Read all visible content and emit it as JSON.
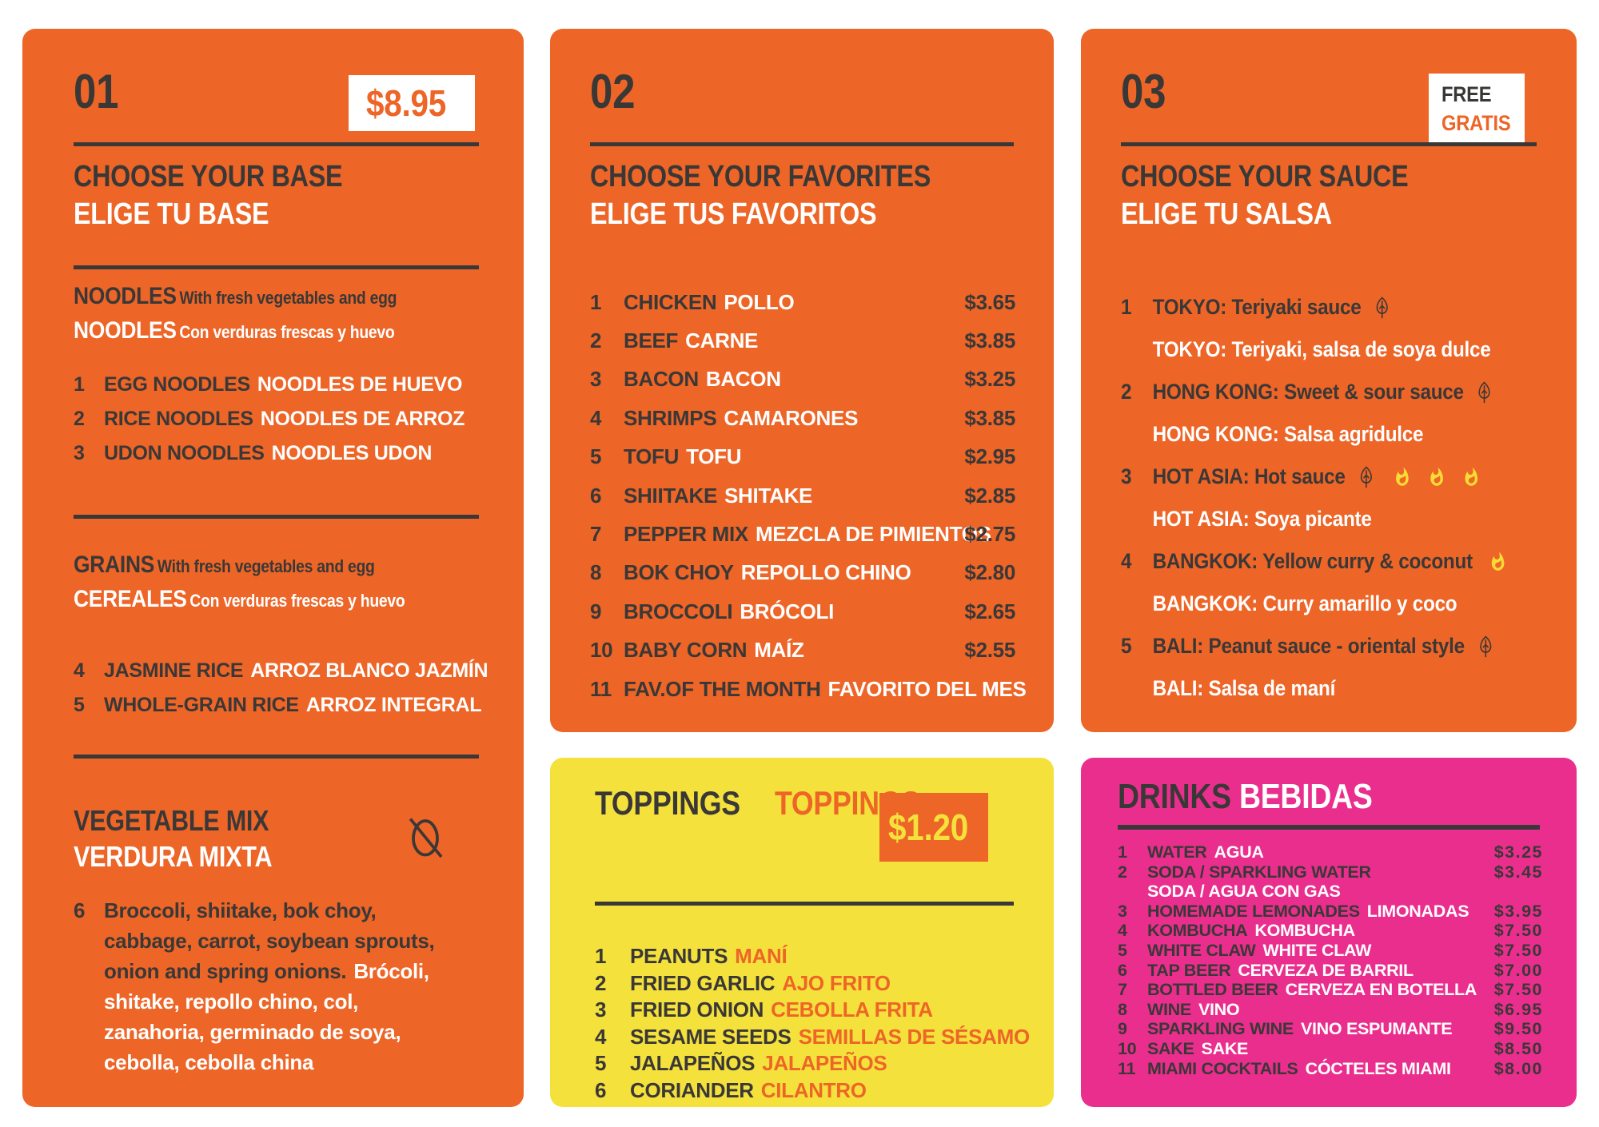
{
  "colors": {
    "orange": "#ED6527",
    "yellow": "#F5E13C",
    "pink": "#EA2E8E",
    "dark": "#3A3837",
    "white": "#FFFFFF"
  },
  "base": {
    "number": "01",
    "price_badge": "$8.95",
    "title_en": "CHOOSE YOUR BASE",
    "title_es": "ELIGE TU BASE",
    "noodles": {
      "heading_en": "NOODLES",
      "desc_en": "With fresh vegetables and egg",
      "heading_es": "NOODLES",
      "desc_es": "Con verduras frescas y huevo",
      "items": [
        {
          "num": "1",
          "en": "EGG NOODLES",
          "es": "NOODLES DE HUEVO"
        },
        {
          "num": "2",
          "en": "RICE NOODLES",
          "es": "NOODLES DE ARROZ"
        },
        {
          "num": "3",
          "en": "UDON NOODLES",
          "es": "NOODLES UDON"
        }
      ]
    },
    "grains": {
      "heading_en": "GRAINS",
      "desc_en": "With fresh vegetables and egg",
      "heading_es": "CEREALES",
      "desc_es": "Con verduras frescas y huevo",
      "items": [
        {
          "num": "4",
          "en": "JASMINE RICE",
          "es": "ARROZ BLANCO JAZMÍN"
        },
        {
          "num": "5",
          "en": "WHOLE-GRAIN RICE",
          "es": "ARROZ INTEGRAL"
        }
      ]
    },
    "vegetable_mix": {
      "title_en": "VEGETABLE MIX",
      "title_es": "VERDURA MIXTA",
      "icon": "no-egg-icon",
      "item_number": "6",
      "desc_en": "Broccoli, shiitake, bok choy, cabbage, carrot, soybean sprouts, onion and spring onions.",
      "desc_es": "Brócoli, shitake, repollo chino, col, zanahoria, germinado de soya, cebolla, cebolla china"
    }
  },
  "favorites": {
    "number": "02",
    "title_en": "CHOOSE YOUR FAVORITES",
    "title_es": "ELIGE TUS FAVORITOS",
    "items": [
      {
        "num": "1",
        "en": "CHICKEN",
        "es": "POLLO",
        "price": "$3.65"
      },
      {
        "num": "2",
        "en": "BEEF",
        "es": "CARNE",
        "price": "$3.85"
      },
      {
        "num": "3",
        "en": "BACON",
        "es": "BACON",
        "price": "$3.25"
      },
      {
        "num": "4",
        "en": "SHRIMPS",
        "es": "CAMARONES",
        "price": "$3.85"
      },
      {
        "num": "5",
        "en": "TOFU",
        "es": "TOFU",
        "price": "$2.95"
      },
      {
        "num": "6",
        "en": "SHIITAKE",
        "es": "SHITAKE",
        "price": "$2.85"
      },
      {
        "num": "7",
        "en": "PEPPER MIX",
        "es": "MEZCLA DE PIMIENTOS",
        "price": "$2.75"
      },
      {
        "num": "8",
        "en": "BOK CHOY",
        "es": "REPOLLO CHINO",
        "price": "$2.80"
      },
      {
        "num": "9",
        "en": "BROCCOLI",
        "es": "BRÓCOLI",
        "price": "$2.65"
      },
      {
        "num": "10",
        "en": "BABY CORN",
        "es": "MAÍZ",
        "price": "$2.55"
      },
      {
        "num": "11",
        "en": "FAV.OF THE MONTH",
        "es": "FAVORITO DEL MES",
        "price": ""
      }
    ]
  },
  "sauces": {
    "number": "03",
    "free_badge_en": "FREE",
    "free_badge_es": "GRATIS",
    "title_en": "CHOOSE YOUR SAUCE",
    "title_es": "ELIGE TU SALSA",
    "items": [
      {
        "num": "1",
        "en": "TOKYO: Teriyaki sauce",
        "es": "TOKYO: Teriyaki, salsa de soya dulce",
        "leaf": true,
        "flames": 0
      },
      {
        "num": "2",
        "en": "HONG KONG: Sweet & sour sauce",
        "es": "HONG KONG: Salsa agridulce",
        "leaf": true,
        "flames": 0
      },
      {
        "num": "3",
        "en": "HOT ASIA: Hot sauce",
        "es": "HOT ASIA: Soya picante",
        "leaf": true,
        "flames": 3
      },
      {
        "num": "4",
        "en": "BANGKOK: Yellow curry & coconut",
        "es": "BANGKOK: Curry amarillo y coco",
        "leaf": false,
        "flames": 1
      },
      {
        "num": "5",
        "en": "BALI: Peanut sauce - oriental style",
        "es": "BALI: Salsa de maní",
        "leaf": true,
        "flames": 0
      }
    ]
  },
  "toppings": {
    "title_en": "TOPPINGS",
    "title_es": "TOPPINGS",
    "price_badge": "$1.20",
    "items": [
      {
        "num": "1",
        "en": "PEANUTS",
        "es": "MANÍ"
      },
      {
        "num": "2",
        "en": "FRIED GARLIC",
        "es": "AJO FRITO"
      },
      {
        "num": "3",
        "en": "FRIED ONION",
        "es": "CEBOLLA FRITA"
      },
      {
        "num": "4",
        "en": "SESAME SEEDS",
        "es": "SEMILLAS DE SÉSAMO"
      },
      {
        "num": "5",
        "en": "JALAPEÑOS",
        "es": "JALAPEÑOS"
      },
      {
        "num": "6",
        "en": "CORIANDER",
        "es": "CILANTRO"
      }
    ]
  },
  "drinks": {
    "title_en": "DRINKS",
    "title_es": "BEBIDAS",
    "items": [
      {
        "num": "1",
        "en": "WATER",
        "es": "AGUA",
        "line2": "",
        "price": "$3.25"
      },
      {
        "num": "2",
        "en": "SODA / SPARKLING WATER",
        "es": "",
        "line2": "SODA / AGUA CON GAS",
        "price": "$3.45"
      },
      {
        "num": "3",
        "en": "HOMEMADE LEMONADES",
        "es": "LIMONADAS",
        "line2": "",
        "price": "$3.95"
      },
      {
        "num": "4",
        "en": "KOMBUCHA",
        "es": "KOMBUCHA",
        "line2": "",
        "price": "$7.50"
      },
      {
        "num": "5",
        "en": "WHITE CLAW",
        "es": "WHITE CLAW",
        "line2": "",
        "price": "$7.50"
      },
      {
        "num": "6",
        "en": "TAP BEER",
        "es": "CERVEZA DE BARRIL",
        "line2": "",
        "price": "$7.00"
      },
      {
        "num": "7",
        "en": "BOTTLED BEER",
        "es": "CERVEZA EN BOTELLA",
        "line2": "",
        "price": "$7.50"
      },
      {
        "num": "8",
        "en": "WINE",
        "es": "VINO",
        "line2": "",
        "price": "$6.95"
      },
      {
        "num": "9",
        "en": "SPARKLING WINE",
        "es": "VINO ESPUMANTE",
        "line2": "",
        "price": "$9.50"
      },
      {
        "num": "10",
        "en": "SAKE",
        "es": "SAKE",
        "line2": "",
        "price": "$8.50"
      },
      {
        "num": "11",
        "en": "MIAMI COCKTAILS",
        "es": "CÓCTELES MIAMI",
        "line2": "",
        "price": "$8.00"
      }
    ]
  }
}
